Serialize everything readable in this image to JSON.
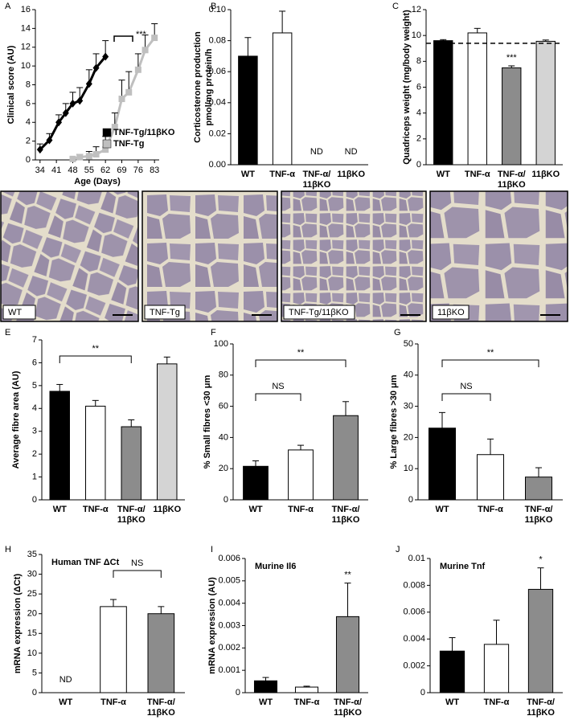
{
  "chart_data": [
    {
      "panel": "A",
      "type": "line",
      "xlabel": "Age (Days)",
      "ylabel": "Clinical score (AU)",
      "xlim": [
        32,
        85
      ],
      "xticks": [
        34,
        41,
        48,
        55,
        62,
        69,
        76,
        83
      ],
      "ylim": [
        0,
        16
      ],
      "yticks": [
        0,
        2,
        4,
        6,
        8,
        10,
        12,
        14,
        16
      ],
      "legend": "lower right",
      "annotations": [
        {
          "text": "***"
        }
      ],
      "series": [
        {
          "name": "TNF-Tg/11βKO",
          "color": "#000000",
          "marker": "diamond",
          "x": [
            34,
            38,
            42,
            45,
            48,
            51,
            55,
            58,
            62
          ],
          "values": [
            1.1,
            2.1,
            4,
            5,
            6,
            6.3,
            8.1,
            9.8,
            11
          ],
          "errors": [
            0.6,
            0.7,
            0.8,
            1,
            1.2,
            1.4,
            1.5,
            1.5,
            1.7
          ]
        },
        {
          "name": "TNF-Tg",
          "color": "#bfbfbf",
          "marker": "square",
          "x": [
            48,
            51,
            55,
            58,
            62,
            66,
            69,
            72,
            76,
            79,
            83
          ],
          "values": [
            0.1,
            0.3,
            0.4,
            0.6,
            1.1,
            3.5,
            6.5,
            7.2,
            9.6,
            11.7,
            13
          ],
          "errors": [
            0.1,
            0.3,
            0.5,
            0.8,
            1.4,
            1.5,
            2,
            2.2,
            1.7,
            1.6,
            1.5
          ]
        }
      ]
    },
    {
      "panel": "B",
      "type": "bar",
      "ylabel": [
        "Corticosterone production",
        "pmol/mg protein/h"
      ],
      "categories": [
        "WT",
        "TNF-α",
        [
          "TNF-α/",
          "11βKO"
        ],
        "11βKO"
      ],
      "colors": [
        "#000000",
        "#ffffff"
      ],
      "values": [
        0.07,
        0.085,
        null,
        null
      ],
      "errors": [
        0.012,
        0.014,
        null,
        null
      ],
      "value_labels": [
        null,
        null,
        "ND",
        "ND"
      ],
      "ylim": [
        0,
        0.1
      ],
      "yticks": [
        {
          "value": 0,
          "label": "0.00"
        },
        0.02,
        0.04,
        0.06,
        0.08,
        {
          "value": 0.1,
          "label": "0.10"
        }
      ]
    },
    {
      "panel": "C",
      "type": "bar",
      "ylabel": "Quadriceps weight (mg/body weight)",
      "categories": [
        "WT",
        "TNF-α",
        [
          "TNF-α/",
          "11βKO"
        ],
        "11βKO"
      ],
      "colors": [
        "#000000",
        "#ffffff",
        "#8c8c8c",
        "#d4d4d4"
      ],
      "values": [
        9.6,
        10.2,
        7.5,
        9.55
      ],
      "errors": [
        0.08,
        0.35,
        0.15,
        0.1
      ],
      "reference_line": 9.4,
      "annotations": [
        {
          "text": "***",
          "at": 2
        }
      ],
      "ylim": [
        0,
        12
      ],
      "yticks": [
        0,
        2,
        4,
        6,
        8,
        10,
        12
      ]
    },
    {
      "panel": "E",
      "type": "bar",
      "ylabel": "Average fibre area (AU)",
      "categories": [
        "WT",
        "TNF-α",
        [
          "TNF-α/",
          "11βKO"
        ],
        "11βKO"
      ],
      "colors": [
        "#000000",
        "#ffffff",
        "#8c8c8c",
        "#d4d4d4"
      ],
      "values": [
        4.75,
        4.1,
        3.2,
        5.95
      ],
      "errors": [
        0.3,
        0.25,
        0.3,
        0.3
      ],
      "annotations": [
        {
          "text": "**",
          "from": 0,
          "to": 2
        }
      ],
      "ylim": [
        0,
        7
      ],
      "yticks": [
        0,
        1,
        2,
        3,
        4,
        5,
        6,
        7
      ]
    },
    {
      "panel": "F",
      "type": "bar",
      "ylabel": "% Small fibres <30 μm",
      "categories": [
        "WT",
        "TNF-α",
        [
          "TNF-α/",
          "11βKO"
        ]
      ],
      "colors": [
        "#000000",
        "#ffffff",
        "#8c8c8c"
      ],
      "values": [
        21.5,
        32,
        54
      ],
      "errors": [
        3.5,
        3,
        9
      ],
      "annotations": [
        {
          "text": "NS",
          "from": 0,
          "to": 1
        },
        {
          "text": "**",
          "from": 0,
          "to": 2
        }
      ],
      "ylim": [
        0,
        100
      ],
      "yticks": [
        0,
        20,
        40,
        60,
        80,
        100
      ]
    },
    {
      "panel": "G",
      "type": "bar",
      "ylabel": "% Large fibres >30 μm",
      "categories": [
        "WT",
        "TNF-α",
        [
          "TNF-α/",
          "11βKO"
        ]
      ],
      "colors": [
        "#000000",
        "#ffffff",
        "#8c8c8c"
      ],
      "values": [
        23,
        14.5,
        7.3
      ],
      "errors": [
        5,
        5,
        3
      ],
      "annotations": [
        {
          "text": "NS",
          "from": 0,
          "to": 1
        },
        {
          "text": "**",
          "from": 0,
          "to": 2
        }
      ],
      "ylim": [
        0,
        50
      ],
      "yticks": [
        0,
        10,
        20,
        30,
        40,
        50
      ]
    },
    {
      "panel": "H",
      "type": "bar",
      "title": "Human TNF ΔCt",
      "ylabel": "mRNA expression (ΔCt)",
      "categories": [
        "WT",
        "TNF-α",
        [
          "TNF-α/",
          "11βKO"
        ]
      ],
      "colors": [
        null,
        "#ffffff",
        "#8c8c8c"
      ],
      "values": [
        null,
        21.8,
        20
      ],
      "errors": [
        null,
        1.8,
        1.8
      ],
      "value_labels": [
        "ND",
        null,
        null
      ],
      "annotations": [
        {
          "text": "NS",
          "from": 1,
          "to": 2
        }
      ],
      "ylim": [
        0,
        35
      ],
      "yticks": [
        0,
        5,
        10,
        15,
        20,
        25,
        30,
        35
      ]
    },
    {
      "panel": "I",
      "type": "bar",
      "title": "Murine Il6",
      "ylabel": "mRNA expression (AU)",
      "categories": [
        "WT",
        "TNF-α",
        [
          "TNF-α/",
          "11βKO"
        ]
      ],
      "colors": [
        "#000000",
        "#ffffff",
        "#8c8c8c"
      ],
      "values": [
        0.00053,
        0.00025,
        0.0034
      ],
      "errors": [
        0.00015,
        4e-05,
        0.0015
      ],
      "annotations": [
        {
          "text": "**",
          "at": 2
        }
      ],
      "ylim": [
        0,
        0.006
      ],
      "yticks": [
        0,
        0.001,
        0.002,
        0.003,
        0.004,
        0.005,
        0.006
      ]
    },
    {
      "panel": "J",
      "type": "bar",
      "title": "Murine Tnf",
      "categories": [
        "WT",
        "TNF-α",
        [
          "TNF-α/",
          "11βKO"
        ]
      ],
      "colors": [
        "#000000",
        "#ffffff",
        "#8c8c8c"
      ],
      "values": [
        0.0031,
        0.0036,
        0.0077
      ],
      "errors": [
        0.001,
        0.0018,
        0.0016
      ],
      "annotations": [
        {
          "text": "*",
          "at": 2
        }
      ],
      "ylim": [
        0,
        0.01
      ],
      "yticks": [
        0,
        0.002,
        0.004,
        0.006,
        0.008,
        0.01
      ]
    }
  ],
  "micrographs": {
    "panel": "D",
    "labels": [
      "WT",
      "TNF-Tg",
      "TNF-Tg/11βKO",
      "11βKO"
    ]
  }
}
